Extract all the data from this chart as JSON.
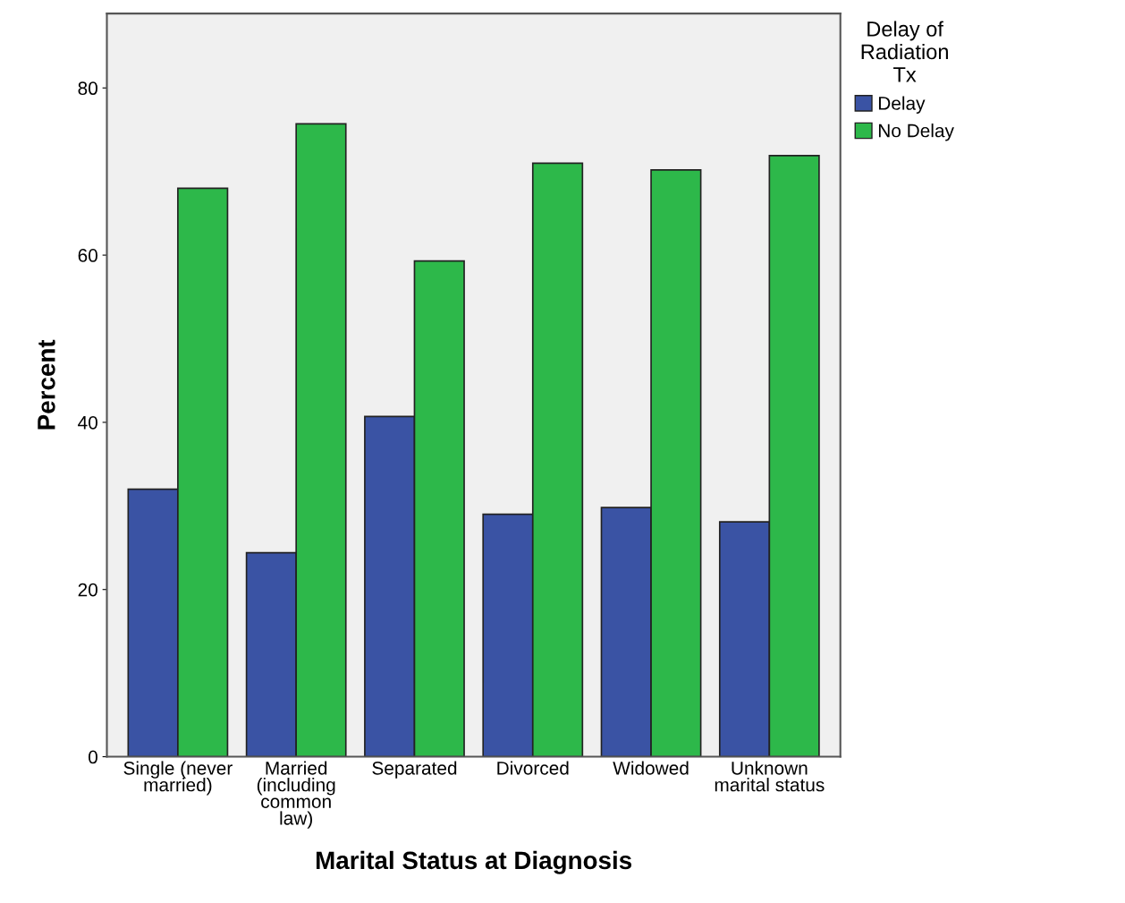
{
  "chart_data": {
    "type": "bar",
    "xlabel": "Marital Status at Diagnosis",
    "ylabel": "Percent",
    "legend_title": "Delay of\nRadiation\nTx",
    "categories": [
      "Single (never\nmarried)",
      "Married\n(including\ncommon\nlaw)",
      "Separated",
      "Divorced",
      "Widowed",
      "Unknown\nmarital status"
    ],
    "series": [
      {
        "name": "Delay",
        "color": "#3a53a4",
        "values": [
          32.0,
          24.4,
          40.7,
          29.0,
          29.8,
          28.1
        ]
      },
      {
        "name": "No Delay",
        "color": "#2db84a",
        "values": [
          68.0,
          75.7,
          59.3,
          71.0,
          70.2,
          71.9
        ]
      }
    ],
    "ylim": [
      0,
      88.9
    ],
    "yticks": [
      0,
      20,
      40,
      60,
      80
    ],
    "grid": false,
    "legend": "top right"
  }
}
